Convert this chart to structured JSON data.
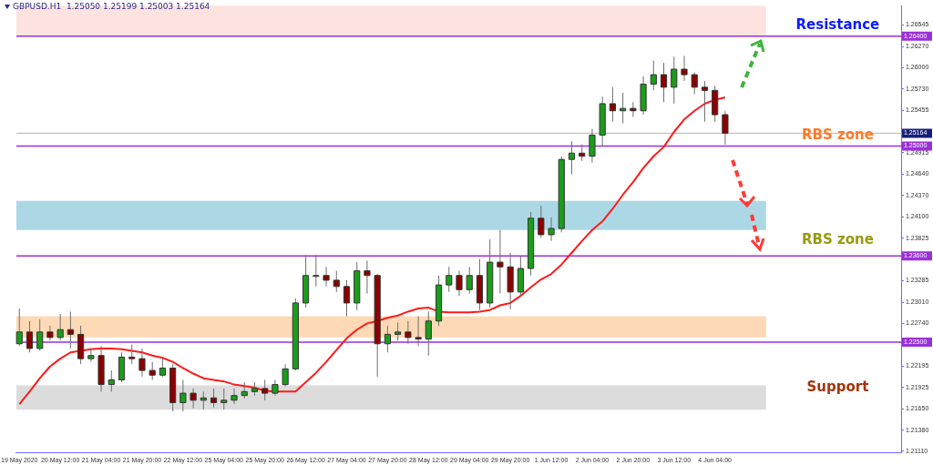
{
  "chart_data": {
    "type": "candlestick",
    "title": "GBPUSD.H1  1.25050 1.25199 1.25003 1.25164",
    "categories": [
      "19 May 2020",
      null,
      null,
      null,
      "20 May 12:00",
      null,
      null,
      null,
      "21 May 04:00",
      null,
      null,
      null,
      "21 May 20:00",
      null,
      null,
      null,
      "22 May 12:00",
      null,
      null,
      null,
      "25 May 04:00",
      null,
      null,
      null,
      "25 May 20:00",
      null,
      null,
      null,
      "26 May 12:00",
      null,
      null,
      null,
      "27 May 04:00",
      null,
      null,
      null,
      "27 May 20:00",
      null,
      null,
      null,
      "28 May 12:00",
      null,
      null,
      null,
      "29 May 04:00",
      null,
      null,
      null,
      "29 May 20:00",
      null,
      null,
      null,
      "1 Jun 12:00",
      null,
      null,
      null,
      "2 Jun 04:00",
      null,
      null,
      null,
      "2 Jun 20:00",
      null,
      null,
      null,
      "3 Jun 12:00",
      null,
      null,
      null,
      "4 Jun 04:00",
      null
    ],
    "ohlc": [
      [
        1.2248,
        1.2293,
        1.2245,
        1.2263
      ],
      [
        1.2263,
        1.2277,
        1.2237,
        1.2242
      ],
      [
        1.2242,
        1.2279,
        1.2239,
        1.2263
      ],
      [
        1.2263,
        1.2271,
        1.2252,
        1.2256
      ],
      [
        1.2256,
        1.2286,
        1.2252,
        1.2266
      ],
      [
        1.2266,
        1.2289,
        1.2242,
        1.226
      ],
      [
        1.226,
        1.2271,
        1.2222,
        1.2229
      ],
      [
        1.2229,
        1.2242,
        1.2225,
        1.2233
      ],
      [
        1.2233,
        1.2245,
        1.2187,
        1.2196
      ],
      [
        1.2196,
        1.2214,
        1.2187,
        1.2202
      ],
      [
        1.2202,
        1.2237,
        1.2199,
        1.2231
      ],
      [
        1.2231,
        1.2247,
        1.2222,
        1.2229
      ],
      [
        1.2229,
        1.2242,
        1.2206,
        1.2214
      ],
      [
        1.2214,
        1.2225,
        1.2202,
        1.2208
      ],
      [
        1.2208,
        1.2229,
        1.2206,
        1.2217
      ],
      [
        1.2217,
        1.2222,
        1.2162,
        1.2173
      ],
      [
        1.2173,
        1.2202,
        1.2162,
        1.2185
      ],
      [
        1.2185,
        1.2191,
        1.2166,
        1.2176
      ],
      [
        1.2176,
        1.2187,
        1.2164,
        1.2179
      ],
      [
        1.2179,
        1.2191,
        1.2167,
        1.2173
      ],
      [
        1.2173,
        1.2191,
        1.2164,
        1.2176
      ],
      [
        1.2176,
        1.2191,
        1.2171,
        1.2182
      ],
      [
        1.2182,
        1.2199,
        1.2178,
        1.2187
      ],
      [
        1.2187,
        1.2199,
        1.2182,
        1.2191
      ],
      [
        1.2191,
        1.2202,
        1.2176,
        1.2185
      ],
      [
        1.2185,
        1.2202,
        1.2182,
        1.2196
      ],
      [
        1.2196,
        1.2222,
        1.2194,
        1.2216
      ],
      [
        1.2216,
        1.2306,
        1.2214,
        1.23
      ],
      [
        1.23,
        1.2361,
        1.2294,
        1.2335
      ],
      [
        1.2335,
        1.2361,
        1.2321,
        1.2335
      ],
      [
        1.2335,
        1.2346,
        1.2321,
        1.2329
      ],
      [
        1.2329,
        1.2341,
        1.2314,
        1.2321
      ],
      [
        1.2321,
        1.2329,
        1.2283,
        1.23
      ],
      [
        1.23,
        1.2352,
        1.2291,
        1.2341
      ],
      [
        1.2341,
        1.2354,
        1.2312,
        1.2335
      ],
      [
        1.2335,
        1.2337,
        1.2206,
        1.2248
      ],
      [
        1.2248,
        1.2271,
        1.2237,
        1.226
      ],
      [
        1.226,
        1.2275,
        1.2252,
        1.2263
      ],
      [
        1.2263,
        1.2277,
        1.2248,
        1.2256
      ],
      [
        1.2256,
        1.2283,
        1.2245,
        1.2254
      ],
      [
        1.2254,
        1.2289,
        1.2233,
        1.2277
      ],
      [
        1.2277,
        1.2335,
        1.2271,
        1.2323
      ],
      [
        1.2323,
        1.2346,
        1.2314,
        1.2335
      ],
      [
        1.2335,
        1.2341,
        1.2309,
        1.2317
      ],
      [
        1.2317,
        1.2346,
        1.2312,
        1.2335
      ],
      [
        1.2335,
        1.2356,
        1.2291,
        1.23
      ],
      [
        1.23,
        1.2381,
        1.2294,
        1.2352
      ],
      [
        1.2352,
        1.2393,
        1.2312,
        1.2346
      ],
      [
        1.2346,
        1.2364,
        1.2292,
        1.2314
      ],
      [
        1.2314,
        1.236,
        1.2309,
        1.2344
      ],
      [
        1.2344,
        1.2416,
        1.2335,
        1.2408
      ],
      [
        1.2408,
        1.2424,
        1.2383,
        1.2387
      ],
      [
        1.2387,
        1.2409,
        1.2379,
        1.2395
      ],
      [
        1.2395,
        1.2487,
        1.239,
        1.2483
      ],
      [
        1.2483,
        1.2506,
        1.2464,
        1.2491
      ],
      [
        1.2491,
        1.2502,
        1.2481,
        1.2487
      ],
      [
        1.2487,
        1.2522,
        1.2479,
        1.2514
      ],
      [
        1.2514,
        1.2563,
        1.25,
        1.2554
      ],
      [
        1.2554,
        1.2575,
        1.2531,
        1.2545
      ],
      [
        1.2545,
        1.2568,
        1.2529,
        1.2548
      ],
      [
        1.2548,
        1.2556,
        1.2537,
        1.2545
      ],
      [
        1.2545,
        1.2589,
        1.254,
        1.2579
      ],
      [
        1.2579,
        1.2609,
        1.2571,
        1.2591
      ],
      [
        1.2591,
        1.2606,
        1.2556,
        1.2575
      ],
      [
        1.2575,
        1.2614,
        1.2554,
        1.2598
      ],
      [
        1.2598,
        1.2615,
        1.2583,
        1.2591
      ],
      [
        1.2591,
        1.2594,
        1.2566,
        1.2575
      ],
      [
        1.2575,
        1.2583,
        1.2531,
        1.2571
      ],
      [
        1.2571,
        1.2577,
        1.2531,
        1.254
      ],
      [
        1.254,
        1.2545,
        1.2502,
        1.25164
      ]
    ],
    "series": [
      {
        "type": "line",
        "color": "#ff1a1a",
        "values": [
          1.2171,
          1.2187,
          1.2204,
          1.2219,
          1.2229,
          1.2237,
          1.2239,
          1.2241,
          1.2242,
          1.2242,
          1.2241,
          1.2239,
          1.2237,
          1.2233,
          1.223,
          1.2225,
          1.2217,
          1.221,
          1.2204,
          1.2202,
          1.22,
          1.2196,
          1.2194,
          1.2192,
          1.2188,
          1.2187,
          1.2187,
          1.2187,
          1.2199,
          1.2211,
          1.2225,
          1.224,
          1.2255,
          1.2266,
          1.2274,
          1.2277,
          1.2281,
          1.2284,
          1.2289,
          1.2293,
          1.2294,
          1.2289,
          1.2288,
          1.2288,
          1.2288,
          1.2289,
          1.2291,
          1.2297,
          1.23,
          1.2309,
          1.232,
          1.233,
          1.2337,
          1.2349,
          1.2364,
          1.2379,
          1.2393,
          1.2404,
          1.242,
          1.2438,
          1.2454,
          1.2472,
          1.2487,
          1.2499,
          1.2518,
          1.2534,
          1.2545,
          1.2554,
          1.2559,
          1.2562
        ]
      }
    ],
    "ylim": [
      1.2109,
      1.2679
    ],
    "yticks": [
      1.26545,
      {
        "value": 1.2627,
        "label": "1.26270"
      },
      {
        "value": 1.26,
        "label": "1.26000"
      },
      {
        "value": 1.2573,
        "label": "1.25730"
      },
      1.25455,
      1.24915,
      {
        "value": 1.2464,
        "label": "1.24640"
      },
      {
        "value": 1.2437,
        "label": "1.24370"
      },
      {
        "value": 1.241,
        "label": "1.24100"
      },
      1.23825,
      1.23285,
      {
        "value": 1.2301,
        "label": "1.23010"
      },
      {
        "value": 1.2274,
        "label": "1.22740"
      },
      1.22195,
      1.21925,
      {
        "value": 1.2165,
        "label": "1.21650"
      },
      {
        "value": 1.2138,
        "label": "1.21380"
      },
      {
        "value": 1.2111,
        "label": "1.21110"
      }
    ],
    "ref_lines": [
      {
        "axis": "y",
        "value": 1.264,
        "label": "1.26400",
        "color": "#9b30d9"
      },
      {
        "axis": "y",
        "value": 1.25164,
        "label": "1.25164",
        "color": "#b4b4b4"
      },
      {
        "axis": "y",
        "value": 1.25,
        "label": "1.25000",
        "color": "#9b30d9"
      },
      {
        "axis": "y",
        "value": 1.236,
        "label": "1.23600",
        "color": "#9b30d9"
      },
      {
        "axis": "y",
        "value": 1.225,
        "label": "1.22500",
        "color": "#9b30d9"
      }
    ],
    "bands": [
      {
        "axis": "y",
        "from": 1.264,
        "to": 1.2679,
        "color": "#fde3df"
      },
      {
        "axis": "y",
        "from": 1.2393,
        "to": 1.243,
        "color": "#acd8e5"
      },
      {
        "axis": "y",
        "from": 1.2256,
        "to": 1.2283,
        "color": "#fdd9b5"
      },
      {
        "axis": "y",
        "from": 1.2164,
        "to": 1.2195,
        "color": "#dcdcdc"
      }
    ],
    "annotations": [
      "Resistance",
      "RBS zone",
      "RBS zone",
      "Support"
    ],
    "legend": false,
    "grid": false
  }
}
